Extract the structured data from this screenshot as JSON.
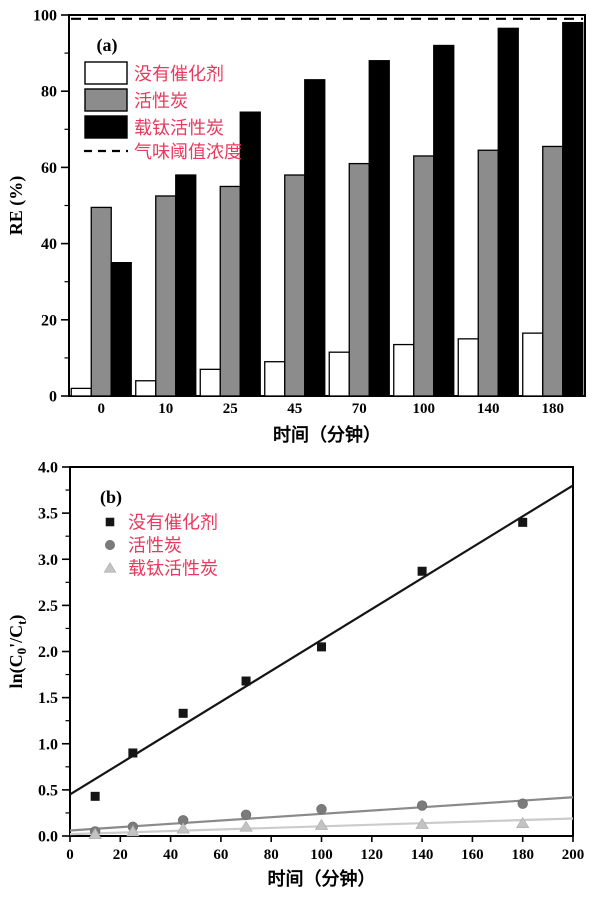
{
  "page": {
    "background": "#ffffff"
  },
  "colors": {
    "axis": "#000000",
    "legend_text": "#e83a5e",
    "bar_white": "#ffffff",
    "bar_gray": "#8c8c8c",
    "bar_black": "#000000",
    "bar_stroke": "#000000",
    "square_marker": "#151515",
    "circle_marker": "#7b7b7b",
    "triangle_marker": "#c3c3c3",
    "fit_black": "#151515",
    "fit_gray": "#8a8a8a",
    "fit_light": "#cbcbcb",
    "threshold_dash": "#000000"
  },
  "chart_data": [
    {
      "id": "a",
      "type": "bar",
      "panel_label": "(a)",
      "xlabel": "时间（分钟）",
      "ylabel": "RE (%)",
      "ylim": [
        0,
        100
      ],
      "y_tick_labels": [
        "0",
        "20",
        "40",
        "60",
        "80",
        "100"
      ],
      "y_tick_values": [
        0,
        20,
        40,
        60,
        80,
        100
      ],
      "y_minor_tick_values": [
        10,
        30,
        50,
        70,
        90
      ],
      "grid": "off",
      "legend_position": "upper-left-inside",
      "categories": [
        "0",
        "10",
        "25",
        "45",
        "70",
        "100",
        "140",
        "180"
      ],
      "series": [
        {
          "name": "没有催化剂",
          "style": "white",
          "values": [
            2,
            4,
            7,
            9,
            11.5,
            13.5,
            15,
            16.5
          ]
        },
        {
          "name": "活性炭",
          "style": "gray",
          "values": [
            49.5,
            52.5,
            55,
            58,
            61,
            63,
            64.5,
            65.5
          ]
        },
        {
          "name": "载钛活性炭",
          "style": "black",
          "values": [
            35,
            58,
            74.5,
            83,
            88,
            92,
            96.5,
            98
          ]
        }
      ],
      "threshold_line": {
        "label": "气味阈值浓度",
        "value": 99,
        "style": "dashed"
      }
    },
    {
      "id": "b",
      "type": "scatter",
      "panel_label": "(b)",
      "xlabel": "时间（分钟）",
      "ylabel_plain": "ln(C0'/Ct)",
      "ylabel_parts": [
        {
          "t": "ln(C",
          "sub": false
        },
        {
          "t": "0",
          "sub": true
        },
        {
          "t": "'",
          "sub": false
        },
        {
          "t": "/C",
          "sub": false
        },
        {
          "t": "t",
          "sub": true
        },
        {
          "t": ")",
          "sub": false
        }
      ],
      "xlim": [
        0,
        200
      ],
      "ylim": [
        0,
        4
      ],
      "x_tick_labels": [
        "0",
        "20",
        "40",
        "60",
        "80",
        "100",
        "120",
        "140",
        "160",
        "180",
        "200"
      ],
      "x_tick_values": [
        0,
        20,
        40,
        60,
        80,
        100,
        120,
        140,
        160,
        180,
        200
      ],
      "y_tick_labels": [
        "0.0",
        "0.5",
        "1.0",
        "1.5",
        "2.0",
        "2.5",
        "3.0",
        "3.5",
        "4.0"
      ],
      "y_tick_values": [
        0,
        0.5,
        1,
        1.5,
        2,
        2.5,
        3,
        3.5,
        4
      ],
      "y_minor_tick_values": [
        0.25,
        0.75,
        1.25,
        1.75,
        2.25,
        2.75,
        3.25,
        3.75
      ],
      "grid": "off",
      "legend_position": "upper-left-inside",
      "series": [
        {
          "name": "没有催化剂",
          "marker": "square",
          "x": [
            10,
            25,
            45,
            70,
            100,
            140,
            180
          ],
          "y": [
            0.43,
            0.9,
            1.33,
            1.68,
            2.05,
            2.87,
            3.4
          ],
          "fit_line": {
            "x0": 0,
            "y0": 0.45,
            "x1": 200,
            "y1": 3.8
          }
        },
        {
          "name": "活性炭",
          "marker": "circle",
          "x": [
            10,
            25,
            45,
            70,
            100,
            140,
            180
          ],
          "y": [
            0.05,
            0.1,
            0.17,
            0.23,
            0.29,
            0.33,
            0.35
          ],
          "fit_line": {
            "x0": 0,
            "y0": 0.06,
            "x1": 200,
            "y1": 0.42
          }
        },
        {
          "name": "载钛活性炭",
          "marker": "triangle",
          "x": [
            10,
            25,
            45,
            70,
            100,
            140,
            180
          ],
          "y": [
            0.02,
            0.05,
            0.08,
            0.1,
            0.12,
            0.13,
            0.14
          ],
          "fit_line": {
            "x0": 0,
            "y0": 0.02,
            "x1": 200,
            "y1": 0.19
          }
        }
      ]
    }
  ]
}
